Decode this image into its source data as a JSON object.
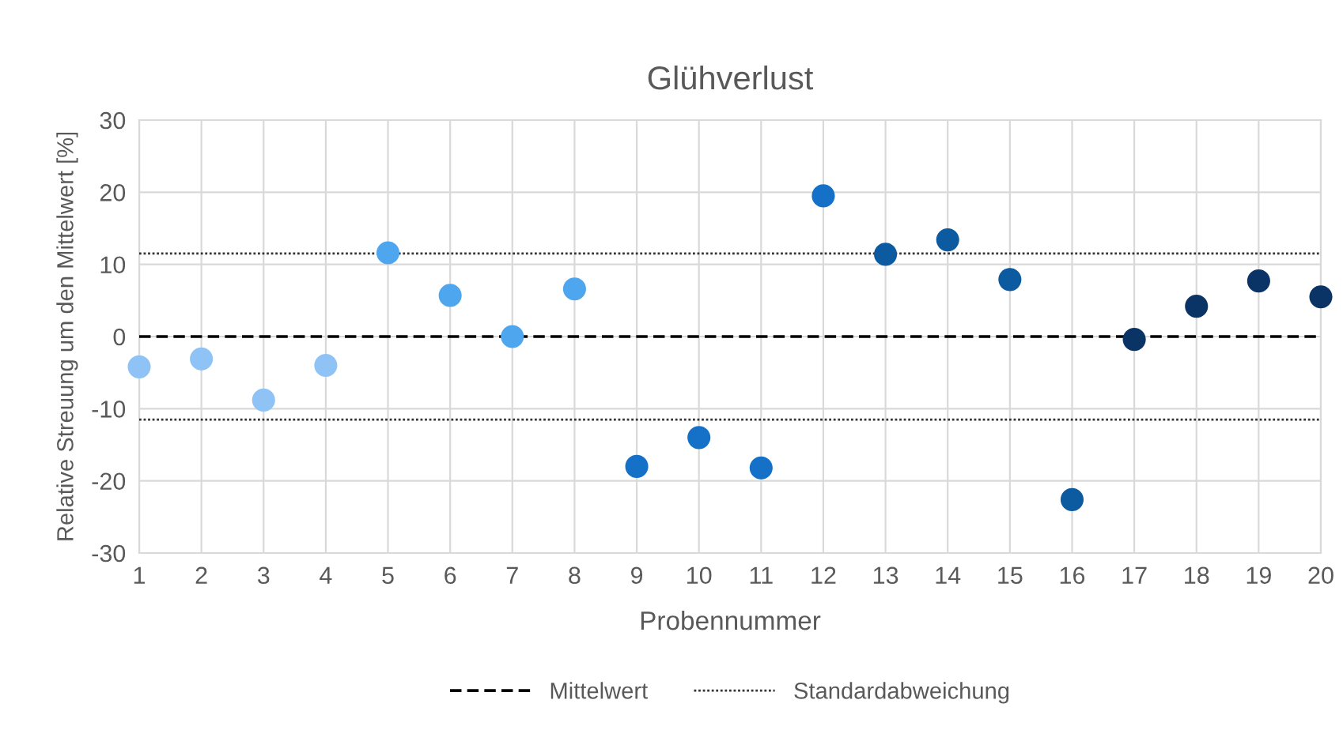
{
  "chart_data": {
    "type": "scatter",
    "title": "Glühverlust",
    "xlabel": "Probennummer",
    "ylabel": "Relative Streuung um den Mittelwert [%]",
    "x": [
      1,
      2,
      3,
      4,
      5,
      6,
      7,
      8,
      9,
      10,
      11,
      12,
      13,
      14,
      15,
      16,
      17,
      18,
      19,
      20
    ],
    "values": [
      -4.2,
      -3.1,
      -8.8,
      -4.0,
      11.6,
      5.7,
      0,
      6.6,
      -18.0,
      -14.0,
      -18.2,
      19.5,
      11.4,
      13.4,
      7.9,
      -22.6,
      -0.4,
      4.2,
      7.7,
      5.5
    ],
    "colors": [
      "#8fc3f5",
      "#8fc3f5",
      "#8fc3f5",
      "#8fc3f5",
      "#4ea6ee",
      "#4ea6ee",
      "#4ea6ee",
      "#4ea6ee",
      "#1570c8",
      "#1570c8",
      "#1570c8",
      "#1570c8",
      "#0c5aa0",
      "#0c5aa0",
      "#0c5aa0",
      "#0c5aa0",
      "#0a3466",
      "#0a3466",
      "#0a3466",
      "#0a3466"
    ],
    "marker": "circle",
    "xlim": [
      1,
      20
    ],
    "xticks": [
      1,
      2,
      3,
      4,
      5,
      6,
      7,
      8,
      9,
      10,
      11,
      12,
      13,
      14,
      15,
      16,
      17,
      18,
      19,
      20
    ],
    "ylim": [
      -30,
      30
    ],
    "yticks": [
      -30,
      -20,
      -10,
      0,
      10,
      20,
      30
    ],
    "grid": true,
    "legend": "bottom",
    "ref_lines": [
      {
        "axis": "y",
        "value": 0,
        "label": "Mittelwert",
        "color": "#000000",
        "line_style": "dashed"
      },
      {
        "axis": "y",
        "value": 11.5,
        "label": "Standardabweichung",
        "color": "#333333",
        "line_style": "dotted"
      },
      {
        "axis": "y",
        "value": -11.5,
        "color": "#333333",
        "line_style": "dotted"
      }
    ]
  }
}
